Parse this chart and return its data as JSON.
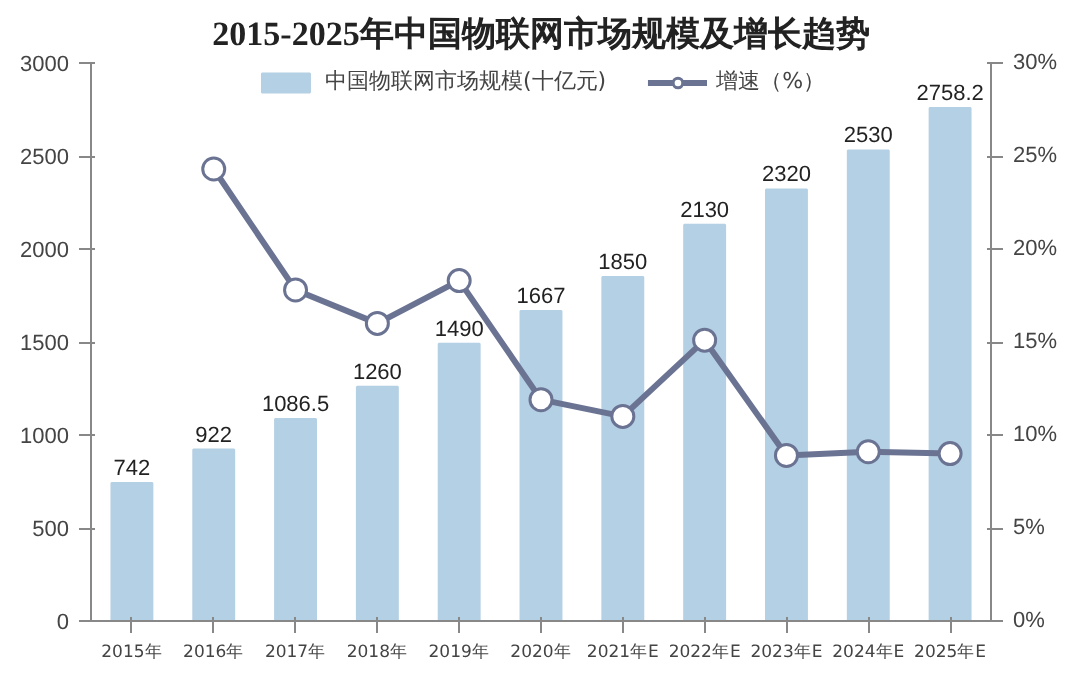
{
  "chart_data": {
    "type": "bar",
    "title": "2015-2025年中国物联网市场规模及增长趋势",
    "categories": [
      "2015年",
      "2016年",
      "2017年",
      "2018年",
      "2019年",
      "2020年",
      "2021年E",
      "2022年E",
      "2023年E",
      "2024年E",
      "2025年E"
    ],
    "series": [
      {
        "name": "中国物联网市场规模(十亿元)",
        "color": "#b4d0e4",
        "values": [
          742,
          922,
          1086.5,
          1260,
          1490,
          1667,
          1850,
          2130,
          2320,
          2530,
          2758.2
        ],
        "value_labels": [
          "742",
          "922",
          "1086.5",
          "1260",
          "1490",
          "1667",
          "1850",
          "2130",
          "2320",
          "2530",
          "2758.2"
        ]
      },
      {
        "name": "增速（%）",
        "type": "line",
        "axis": "y2",
        "color": "#6b7393",
        "marker": "circle",
        "values": [
          null,
          24.3,
          17.8,
          16.0,
          18.3,
          11.9,
          11.0,
          15.1,
          8.9,
          9.1,
          9.0
        ]
      }
    ],
    "ylim": [
      0,
      3000
    ],
    "yticks": [
      0,
      500,
      1000,
      1500,
      2000,
      2500,
      3000
    ],
    "y2lim": [
      0,
      30
    ],
    "y2ticks": [
      {
        "value": 0,
        "label": "0%"
      },
      {
        "value": 5,
        "label": "5%"
      },
      {
        "value": 10,
        "label": "10%"
      },
      {
        "value": 15,
        "label": "15%"
      },
      {
        "value": 20,
        "label": "20%"
      },
      {
        "value": 25,
        "label": "25%"
      },
      {
        "value": 30,
        "label": "30%"
      }
    ],
    "grid": false,
    "legend": "top"
  }
}
